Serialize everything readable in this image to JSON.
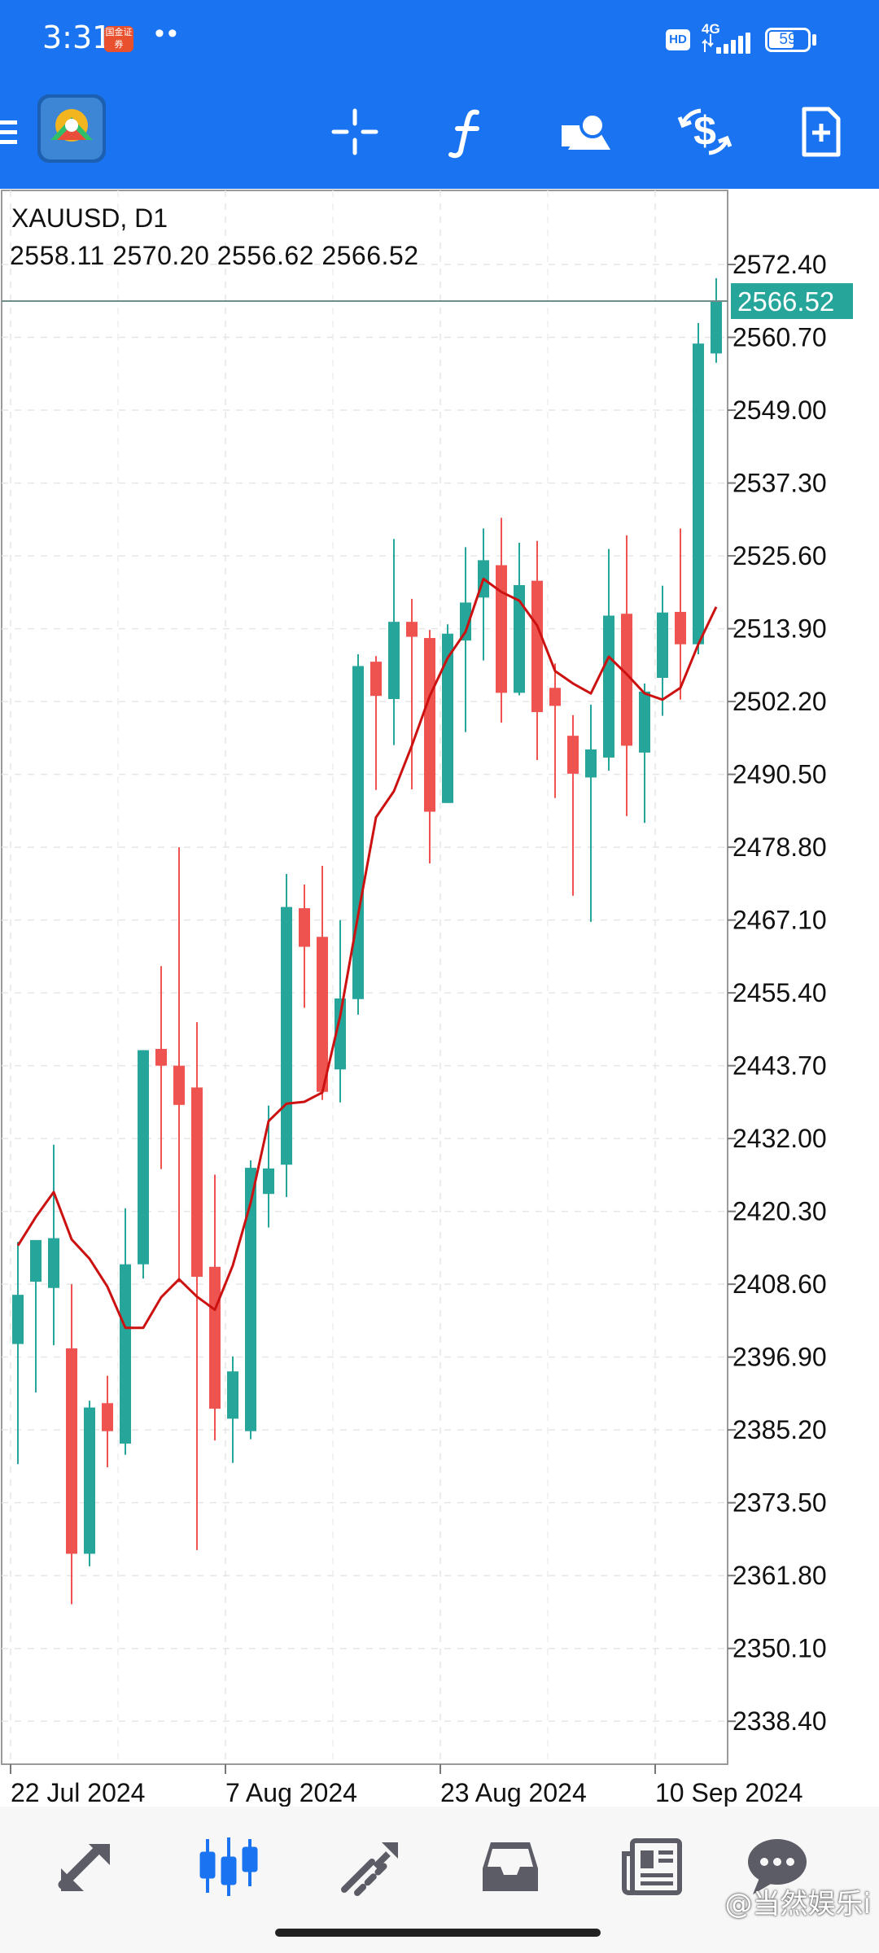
{
  "status_bar": {
    "time": "3:31",
    "broker_badge": "国金证券",
    "dots": "••",
    "hd_badge": "HD",
    "network": "4G",
    "battery": "59"
  },
  "toolbar": {
    "icons": [
      "app-logo-icon",
      "crosshair-icon",
      "indicators-icon",
      "objects-icon",
      "trade-icon",
      "new-order-icon"
    ],
    "background": "#1a73f0"
  },
  "chart_data": {
    "type": "candlestick",
    "title": "XAUUSD, D1",
    "ohlc_header": "2558.11 2570.20 2556.62 2566.52",
    "current_price": "2566.52",
    "y_ticks": [
      "2572.40",
      "2560.70",
      "2549.00",
      "2537.30",
      "2525.60",
      "2513.90",
      "2502.20",
      "2490.50",
      "2478.80",
      "2467.10",
      "2455.40",
      "2443.70",
      "2432.00",
      "2420.30",
      "2408.60",
      "2396.90",
      "2385.20",
      "2373.50",
      "2361.80",
      "2350.10",
      "2338.40"
    ],
    "ylim": [
      2331.5,
      2584.3
    ],
    "x_labels": [
      {
        "label": "22 Jul 2024",
        "index": 0.0
      },
      {
        "label": "7 Aug 2024",
        "index": 12.0
      },
      {
        "label": "23 Aug 2024",
        "index": 24.0
      },
      {
        "label": "10 Sep 2024",
        "index": 36.0
      }
    ],
    "bull_color": "#26a69a",
    "bear_color": "#ef5350",
    "ma_color": "#cc1111",
    "candles": [
      {
        "o": 2399.0,
        "h": 2415.4,
        "l": 2379.7,
        "c": 2406.9
      },
      {
        "o": 2409.0,
        "h": 2413.6,
        "l": 2391.2,
        "c": 2415.7
      },
      {
        "o": 2408.0,
        "h": 2431.0,
        "l": 2398.8,
        "c": 2416.0
      },
      {
        "o": 2398.3,
        "h": 2408.6,
        "l": 2357.2,
        "c": 2365.3
      },
      {
        "o": 2365.3,
        "h": 2389.9,
        "l": 2363.3,
        "c": 2388.8
      },
      {
        "o": 2389.5,
        "h": 2393.9,
        "l": 2379.2,
        "c": 2385.0
      },
      {
        "o": 2383.0,
        "h": 2420.8,
        "l": 2381.2,
        "c": 2411.8
      },
      {
        "o": 2411.8,
        "h": 2443.9,
        "l": 2409.5,
        "c": 2446.2
      },
      {
        "o": 2446.4,
        "h": 2459.7,
        "l": 2427.1,
        "c": 2443.7
      },
      {
        "o": 2443.7,
        "h": 2478.8,
        "l": 2408.9,
        "c": 2437.4
      },
      {
        "o": 2440.2,
        "h": 2450.7,
        "l": 2365.9,
        "c": 2409.8
      },
      {
        "o": 2411.4,
        "h": 2426.2,
        "l": 2383.5,
        "c": 2388.6
      },
      {
        "o": 2387.0,
        "h": 2397.0,
        "l": 2379.9,
        "c": 2394.6
      },
      {
        "o": 2385.0,
        "h": 2428.5,
        "l": 2383.7,
        "c": 2427.3
      },
      {
        "o": 2423.1,
        "h": 2437.3,
        "l": 2417.7,
        "c": 2427.2
      },
      {
        "o": 2427.8,
        "h": 2474.5,
        "l": 2422.6,
        "c": 2469.2
      },
      {
        "o": 2469.0,
        "h": 2472.8,
        "l": 2453.0,
        "c": 2462.8
      },
      {
        "o": 2464.4,
        "h": 2475.8,
        "l": 2438.2,
        "c": 2439.5
      },
      {
        "o": 2443.1,
        "h": 2467.1,
        "l": 2437.8,
        "c": 2454.5
      },
      {
        "o": 2454.4,
        "h": 2509.8,
        "l": 2451.9,
        "c": 2507.9
      },
      {
        "o": 2508.6,
        "h": 2509.5,
        "l": 2488.0,
        "c": 2503.1
      },
      {
        "o": 2502.6,
        "h": 2528.3,
        "l": 2495.2,
        "c": 2515.0
      },
      {
        "o": 2515.0,
        "h": 2518.7,
        "l": 2488.1,
        "c": 2512.6
      },
      {
        "o": 2512.4,
        "h": 2513.7,
        "l": 2476.2,
        "c": 2484.5
      },
      {
        "o": 2485.9,
        "h": 2514.6,
        "l": 2485.9,
        "c": 2513.1
      },
      {
        "o": 2512.0,
        "h": 2527.0,
        "l": 2497.3,
        "c": 2518.1
      },
      {
        "o": 2518.9,
        "h": 2530.0,
        "l": 2508.8,
        "c": 2524.9
      },
      {
        "o": 2524.1,
        "h": 2531.7,
        "l": 2498.8,
        "c": 2503.6
      },
      {
        "o": 2503.6,
        "h": 2527.7,
        "l": 2503.2,
        "c": 2520.9
      },
      {
        "o": 2521.6,
        "h": 2528.0,
        "l": 2492.8,
        "c": 2500.5
      },
      {
        "o": 2504.4,
        "h": 2508.3,
        "l": 2486.7,
        "c": 2501.5
      },
      {
        "o": 2496.7,
        "h": 2500.0,
        "l": 2471.0,
        "c": 2490.6
      },
      {
        "o": 2490.0,
        "h": 2501.7,
        "l": 2466.8,
        "c": 2494.5
      },
      {
        "o": 2493.2,
        "h": 2526.7,
        "l": 2491.1,
        "c": 2516.0
      },
      {
        "o": 2516.3,
        "h": 2528.9,
        "l": 2483.8,
        "c": 2495.1
      },
      {
        "o": 2494.0,
        "h": 2505.1,
        "l": 2482.7,
        "c": 2503.8
      },
      {
        "o": 2506.0,
        "h": 2520.8,
        "l": 2499.9,
        "c": 2516.5
      },
      {
        "o": 2516.6,
        "h": 2530.0,
        "l": 2502.5,
        "c": 2511.4
      },
      {
        "o": 2511.4,
        "h": 2563.0,
        "l": 2509.8,
        "c": 2559.7
      },
      {
        "o": 2558.11,
        "h": 2570.2,
        "l": 2556.62,
        "c": 2566.52
      }
    ],
    "ma": [
      2414.8,
      2419.4,
      2423.4,
      2415.8,
      2412.7,
      2408.2,
      2401.6,
      2401.6,
      2406.5,
      2409.4,
      2406.6,
      2404.5,
      2411.6,
      2421.7,
      2434.8,
      2437.6,
      2437.9,
      2439.4,
      2451.7,
      2467.9,
      2483.6,
      2487.8,
      2495.1,
      2503.1,
      2509.2,
      2513.4,
      2521.9,
      2519.8,
      2518.4,
      2514.4,
      2507.1,
      2505.1,
      2503.5,
      2509.4,
      2506.6,
      2503.5,
      2502.5,
      2504.4,
      2511.4,
      2517.4
    ]
  },
  "bottom_nav": {
    "items": [
      "quotes-icon",
      "chart-icon",
      "trade-icon",
      "history-icon",
      "news-icon",
      "messages-icon"
    ],
    "active": 1,
    "active_color": "#1a73f0",
    "inactive_color": "#5c5c66"
  },
  "watermark": "@当然娱乐i"
}
